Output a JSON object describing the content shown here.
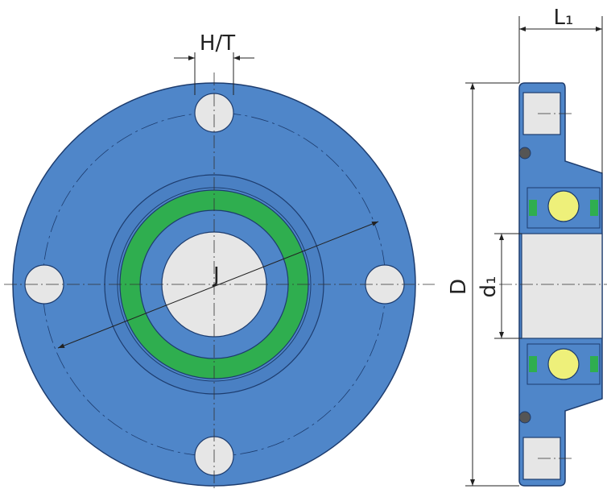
{
  "labels": {
    "hole": "H/T",
    "bolt_circle": "J",
    "length": "L₁",
    "diameter": "D",
    "bore": "d₁"
  }
}
